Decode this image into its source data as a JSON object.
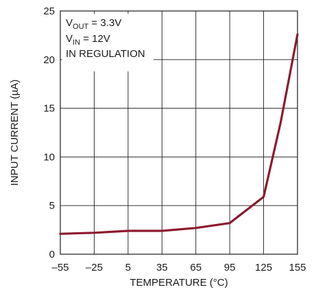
{
  "chart_data": {
    "type": "line",
    "xlabel": "TEMPERATURE (°C)",
    "ylabel": "INPUT CURRENT (µA)",
    "xlim": [
      -55,
      155
    ],
    "ylim": [
      0,
      25
    ],
    "xticks": [
      "–55",
      "–25",
      "5",
      "35",
      "65",
      "95",
      "125",
      "155"
    ],
    "yticks": [
      "0",
      "5",
      "10",
      "15",
      "20",
      "25"
    ],
    "grid": true,
    "annotations": {
      "line1": {
        "main": "V",
        "sub": "OUT",
        "rest": " = 3.3V"
      },
      "line2": {
        "main": "V",
        "sub": "IN",
        "rest": " = 12V"
      },
      "line3": "IN REGULATION"
    },
    "series": [
      {
        "color": "#8b1a2e",
        "x": [
          -55,
          -25,
          5,
          35,
          65,
          95,
          125,
          140,
          155
        ],
        "y": [
          2.1,
          2.2,
          2.4,
          2.4,
          2.7,
          3.2,
          5.9,
          13.5,
          22.6
        ]
      }
    ]
  }
}
